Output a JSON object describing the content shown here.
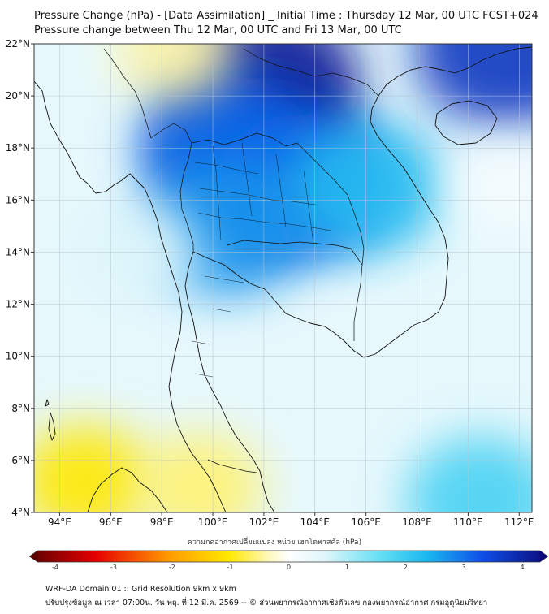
{
  "header": {
    "title_line1": "Pressure Change (hPa) - [Data Assimilation] _ Initial Time : Thursday 12 Mar, 00 UTC FCST+024",
    "title_line2": "Pressure change between Thu 12 Mar, 00 UTC and Fri 13 Mar, 00 UTC"
  },
  "map": {
    "lat_range": [
      4,
      22
    ],
    "lon_range": [
      93,
      112.5
    ],
    "lat_ticks": [
      {
        "value": 22,
        "label": "22°N"
      },
      {
        "value": 20,
        "label": "20°N"
      },
      {
        "value": 18,
        "label": "18°N"
      },
      {
        "value": 16,
        "label": "16°N"
      },
      {
        "value": 14,
        "label": "14°N"
      },
      {
        "value": 12,
        "label": "12°N"
      },
      {
        "value": 10,
        "label": "10°N"
      },
      {
        "value": 8,
        "label": "8°N"
      },
      {
        "value": 6,
        "label": "6°N"
      },
      {
        "value": 4,
        "label": "4°N"
      }
    ],
    "lon_ticks": [
      {
        "value": 94,
        "label": "94°E"
      },
      {
        "value": 96,
        "label": "96°E"
      },
      {
        "value": 98,
        "label": "98°E"
      },
      {
        "value": 100,
        "label": "100°E"
      },
      {
        "value": 102,
        "label": "102°E"
      },
      {
        "value": 104,
        "label": "104°E"
      },
      {
        "value": 106,
        "label": "106°E"
      },
      {
        "value": 108,
        "label": "108°E"
      },
      {
        "value": 110,
        "label": "110°E"
      },
      {
        "value": 112,
        "label": "112°E"
      }
    ],
    "field_blobs": [
      {
        "lon": 102,
        "lat": 20.5,
        "value": 4.0
      },
      {
        "lon": 102,
        "lat": 17.6,
        "value": 4.0
      },
      {
        "lon": 100.5,
        "lat": 18.0,
        "value": 3.0
      },
      {
        "lon": 103.5,
        "lat": 16.5,
        "value": 3.0
      },
      {
        "lon": 100.5,
        "lat": 15.0,
        "value": 2.6
      },
      {
        "lon": 106,
        "lat": 16.5,
        "value": 2.2
      },
      {
        "lon": 111.5,
        "lat": 21.8,
        "value": 3.6
      },
      {
        "lon": 97,
        "lat": 14.0,
        "value": 0.6
      },
      {
        "lon": 95,
        "lat": 5.2,
        "value": -1.0
      },
      {
        "lon": 99.5,
        "lat": 5.0,
        "value": -0.6
      },
      {
        "lon": 98.5,
        "lat": 21.8,
        "value": -0.4
      },
      {
        "lon": 111.5,
        "lat": 16.5,
        "value": 0.2
      },
      {
        "lon": 110.5,
        "lat": 4.5,
        "value": 1.8
      }
    ],
    "colors": {
      "land_outline": "#111111",
      "grid": "#b8c4cc"
    }
  },
  "colorbar": {
    "label": "ความกดอากาศเปลี่ยนแปลง หน่วย เฮกโตพาสคัล (hPa)",
    "min": -4,
    "max": 4,
    "ticks": [
      {
        "value": -4,
        "label": "-4"
      },
      {
        "value": -3,
        "label": "-3"
      },
      {
        "value": -2,
        "label": "-2"
      },
      {
        "value": -1,
        "label": "-1"
      },
      {
        "value": 0,
        "label": "0"
      },
      {
        "value": 1,
        "label": "1"
      },
      {
        "value": 2,
        "label": "2"
      },
      {
        "value": 3,
        "label": "3"
      },
      {
        "value": 4,
        "label": "4"
      }
    ],
    "stops": [
      {
        "value": -4.3,
        "color": "#5c0000"
      },
      {
        "value": -3.2,
        "color": "#e60000"
      },
      {
        "value": -2.0,
        "color": "#ff9900"
      },
      {
        "value": -1.0,
        "color": "#ffe800"
      },
      {
        "value": -0.3,
        "color": "#fff9c4"
      },
      {
        "value": 0.0,
        "color": "#ffffff"
      },
      {
        "value": 0.6,
        "color": "#dff6fb"
      },
      {
        "value": 1.5,
        "color": "#66e0f5"
      },
      {
        "value": 2.3,
        "color": "#19b8f0"
      },
      {
        "value": 3.2,
        "color": "#1050e8"
      },
      {
        "value": 4.3,
        "color": "#0a0a7a"
      }
    ]
  },
  "footer": {
    "line1": "WRF-DA Domain 01 :: Grid Resolution 9km x 9km",
    "line2": "ปรับปรุงข้อมูล ณ เวลา 07:00น. วัน พฤ. ที่ 12 มี.ค. 2569 -- © ส่วนพยากรณ์อากาศเชิงตัวเลข กองพยากรณ์อากาศ กรมอุตุนิยมวิทยา"
  }
}
